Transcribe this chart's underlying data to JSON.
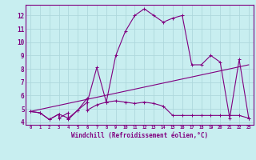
{
  "background_color": "#c8eef0",
  "grid_color": "#aed8dc",
  "line_color": "#800080",
  "xlabel": "Windchill (Refroidissement éolien,°C)",
  "xlim": [
    -0.5,
    23.5
  ],
  "ylim": [
    3.8,
    12.8
  ],
  "yticks": [
    4,
    5,
    6,
    7,
    8,
    9,
    10,
    11,
    12
  ],
  "xticks": [
    0,
    1,
    2,
    3,
    4,
    5,
    6,
    7,
    8,
    9,
    10,
    11,
    12,
    13,
    14,
    15,
    16,
    17,
    18,
    19,
    20,
    21,
    22,
    23
  ],
  "series1_x": [
    0,
    1,
    2,
    3,
    3,
    4,
    4,
    5,
    6,
    6,
    7,
    8,
    9,
    10,
    11,
    12,
    13,
    14,
    15,
    16,
    17,
    18,
    19,
    20,
    21,
    22,
    23
  ],
  "series1_y": [
    4.8,
    4.7,
    4.2,
    4.6,
    4.3,
    4.7,
    4.2,
    4.9,
    5.8,
    4.9,
    5.3,
    5.5,
    5.6,
    5.5,
    5.4,
    5.5,
    5.4,
    5.2,
    4.5,
    4.5,
    4.5,
    4.5,
    4.5,
    4.5,
    4.5,
    4.5,
    4.3
  ],
  "series2_x": [
    0,
    1,
    2,
    3,
    4,
    5,
    6,
    7,
    8,
    9,
    10,
    11,
    12,
    13,
    14,
    15,
    16,
    17,
    18,
    19,
    20,
    21,
    22,
    23
  ],
  "series2_y": [
    4.8,
    4.7,
    4.2,
    4.6,
    4.3,
    4.9,
    5.5,
    8.1,
    5.5,
    9.0,
    10.8,
    12.0,
    12.5,
    12.0,
    11.5,
    11.8,
    12.0,
    8.3,
    8.3,
    9.0,
    8.5,
    4.3,
    8.7,
    4.3
  ],
  "series3_x": [
    0,
    23
  ],
  "series3_y": [
    4.8,
    8.3
  ]
}
